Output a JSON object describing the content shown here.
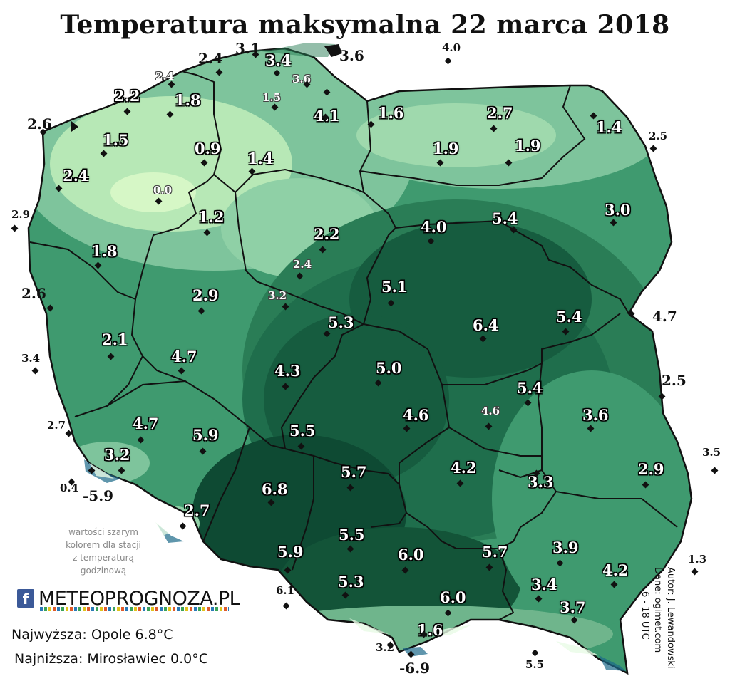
{
  "title": "Temperatura maksymalna 22 marca 2018",
  "note": [
    "wartości szarym",
    "kolorem dla stacji",
    "z temperaturą",
    "godzinową"
  ],
  "logo": {
    "fb": "f",
    "text": "METEOPROGNOZA.PL"
  },
  "summary": {
    "max": "Najwyższa: Opole 6.8°C",
    "min": "Najniższa: Mirosławiec 0.0°C"
  },
  "credits": {
    "author": "Autor: J. Lewandowski",
    "data": "Dane: ogimet.com",
    "hours": "6 - 18 UTC"
  },
  "colors": {
    "light": "#c8f2c0",
    "mid": "#7ec49c",
    "green": "#3f9a6f",
    "dark": "#1f6e4c",
    "darkest": "#0e4a33",
    "border": "#111111"
  },
  "stations": [
    {
      "t": "3.1",
      "s": "out"
    },
    {
      "t": "2.4",
      "s": "out"
    },
    {
      "t": "3.4",
      "s": "in"
    },
    {
      "t": "3.6",
      "s": "out"
    },
    {
      "t": "4.0",
      "s": "outsmall"
    },
    {
      "t": "2.4",
      "s": "gray"
    },
    {
      "t": "3.6",
      "s": "gray"
    },
    {
      "t": "1.5",
      "s": "gray"
    },
    {
      "t": "2.2",
      "s": "in"
    },
    {
      "t": "1.8",
      "s": "in"
    },
    {
      "t": "4.1",
      "s": "in"
    },
    {
      "t": "1.6",
      "s": "in"
    },
    {
      "t": "2.7",
      "s": "in"
    },
    {
      "t": "2.6",
      "s": "out"
    },
    {
      "t": "1.4",
      "s": "in"
    },
    {
      "t": "2.5",
      "s": "outsmall"
    },
    {
      "t": "1.5",
      "s": "in"
    },
    {
      "t": "0.9",
      "s": "in"
    },
    {
      "t": "1.4",
      "s": "in"
    },
    {
      "t": "1.9",
      "s": "in"
    },
    {
      "t": "1.9",
      "s": "in"
    },
    {
      "t": "2.4",
      "s": "in"
    },
    {
      "t": "0.0",
      "s": "gray"
    },
    {
      "t": "2.9",
      "s": "outsmall"
    },
    {
      "t": "1.2",
      "s": "in"
    },
    {
      "t": "3.0",
      "s": "in"
    },
    {
      "t": "4.0",
      "s": "in"
    },
    {
      "t": "5.4",
      "s": "in"
    },
    {
      "t": "2.2",
      "s": "in"
    },
    {
      "t": "1.8",
      "s": "in"
    },
    {
      "t": "2.4",
      "s": "gray"
    },
    {
      "t": "2.6",
      "s": "out"
    },
    {
      "t": "2.9",
      "s": "in"
    },
    {
      "t": "3.2",
      "s": "gray"
    },
    {
      "t": "5.1",
      "s": "in"
    },
    {
      "t": "4.7",
      "s": "out"
    },
    {
      "t": "5.3",
      "s": "in"
    },
    {
      "t": "6.4",
      "s": "in"
    },
    {
      "t": "5.4",
      "s": "in"
    },
    {
      "t": "2.1",
      "s": "in"
    },
    {
      "t": "3.4",
      "s": "outsmall"
    },
    {
      "t": "4.7",
      "s": "in"
    },
    {
      "t": "4.3",
      "s": "in"
    },
    {
      "t": "5.0",
      "s": "in"
    },
    {
      "t": "2.5",
      "s": "out"
    },
    {
      "t": "5.4",
      "s": "in"
    },
    {
      "t": "2.7",
      "s": "outsmall"
    },
    {
      "t": "4.7",
      "s": "in"
    },
    {
      "t": "5.9",
      "s": "in"
    },
    {
      "t": "5.5",
      "s": "in"
    },
    {
      "t": "4.6",
      "s": "in"
    },
    {
      "t": "4.6",
      "s": "gray"
    },
    {
      "t": "3.6",
      "s": "in"
    },
    {
      "t": "3.2",
      "s": "in"
    },
    {
      "t": "3.5",
      "s": "outsmall"
    },
    {
      "t": "4.2",
      "s": "in"
    },
    {
      "t": "2.9",
      "s": "in"
    },
    {
      "t": "0.4",
      "s": "outsmall"
    },
    {
      "t": "-5.9",
      "s": "out"
    },
    {
      "t": "6.8",
      "s": "in"
    },
    {
      "t": "5.7",
      "s": "in"
    },
    {
      "t": "3.3",
      "s": "in"
    },
    {
      "t": "2.7",
      "s": "in"
    },
    {
      "t": "5.5",
      "s": "in"
    },
    {
      "t": "3.9",
      "s": "in"
    },
    {
      "t": "5.9",
      "s": "in"
    },
    {
      "t": "6.0",
      "s": "in"
    },
    {
      "t": "5.7",
      "s": "in"
    },
    {
      "t": "1.3",
      "s": "outsmall"
    },
    {
      "t": "4.2",
      "s": "in"
    },
    {
      "t": "6.1",
      "s": "outsmall"
    },
    {
      "t": "5.3",
      "s": "in"
    },
    {
      "t": "3.4",
      "s": "in"
    },
    {
      "t": "6.0",
      "s": "in"
    },
    {
      "t": "3.7",
      "s": "in"
    },
    {
      "t": "1.6",
      "s": "in"
    },
    {
      "t": "3.2",
      "s": "outsmall"
    },
    {
      "t": "-6.9",
      "s": "out"
    },
    {
      "t": "5.5",
      "s": "outsmall"
    }
  ]
}
